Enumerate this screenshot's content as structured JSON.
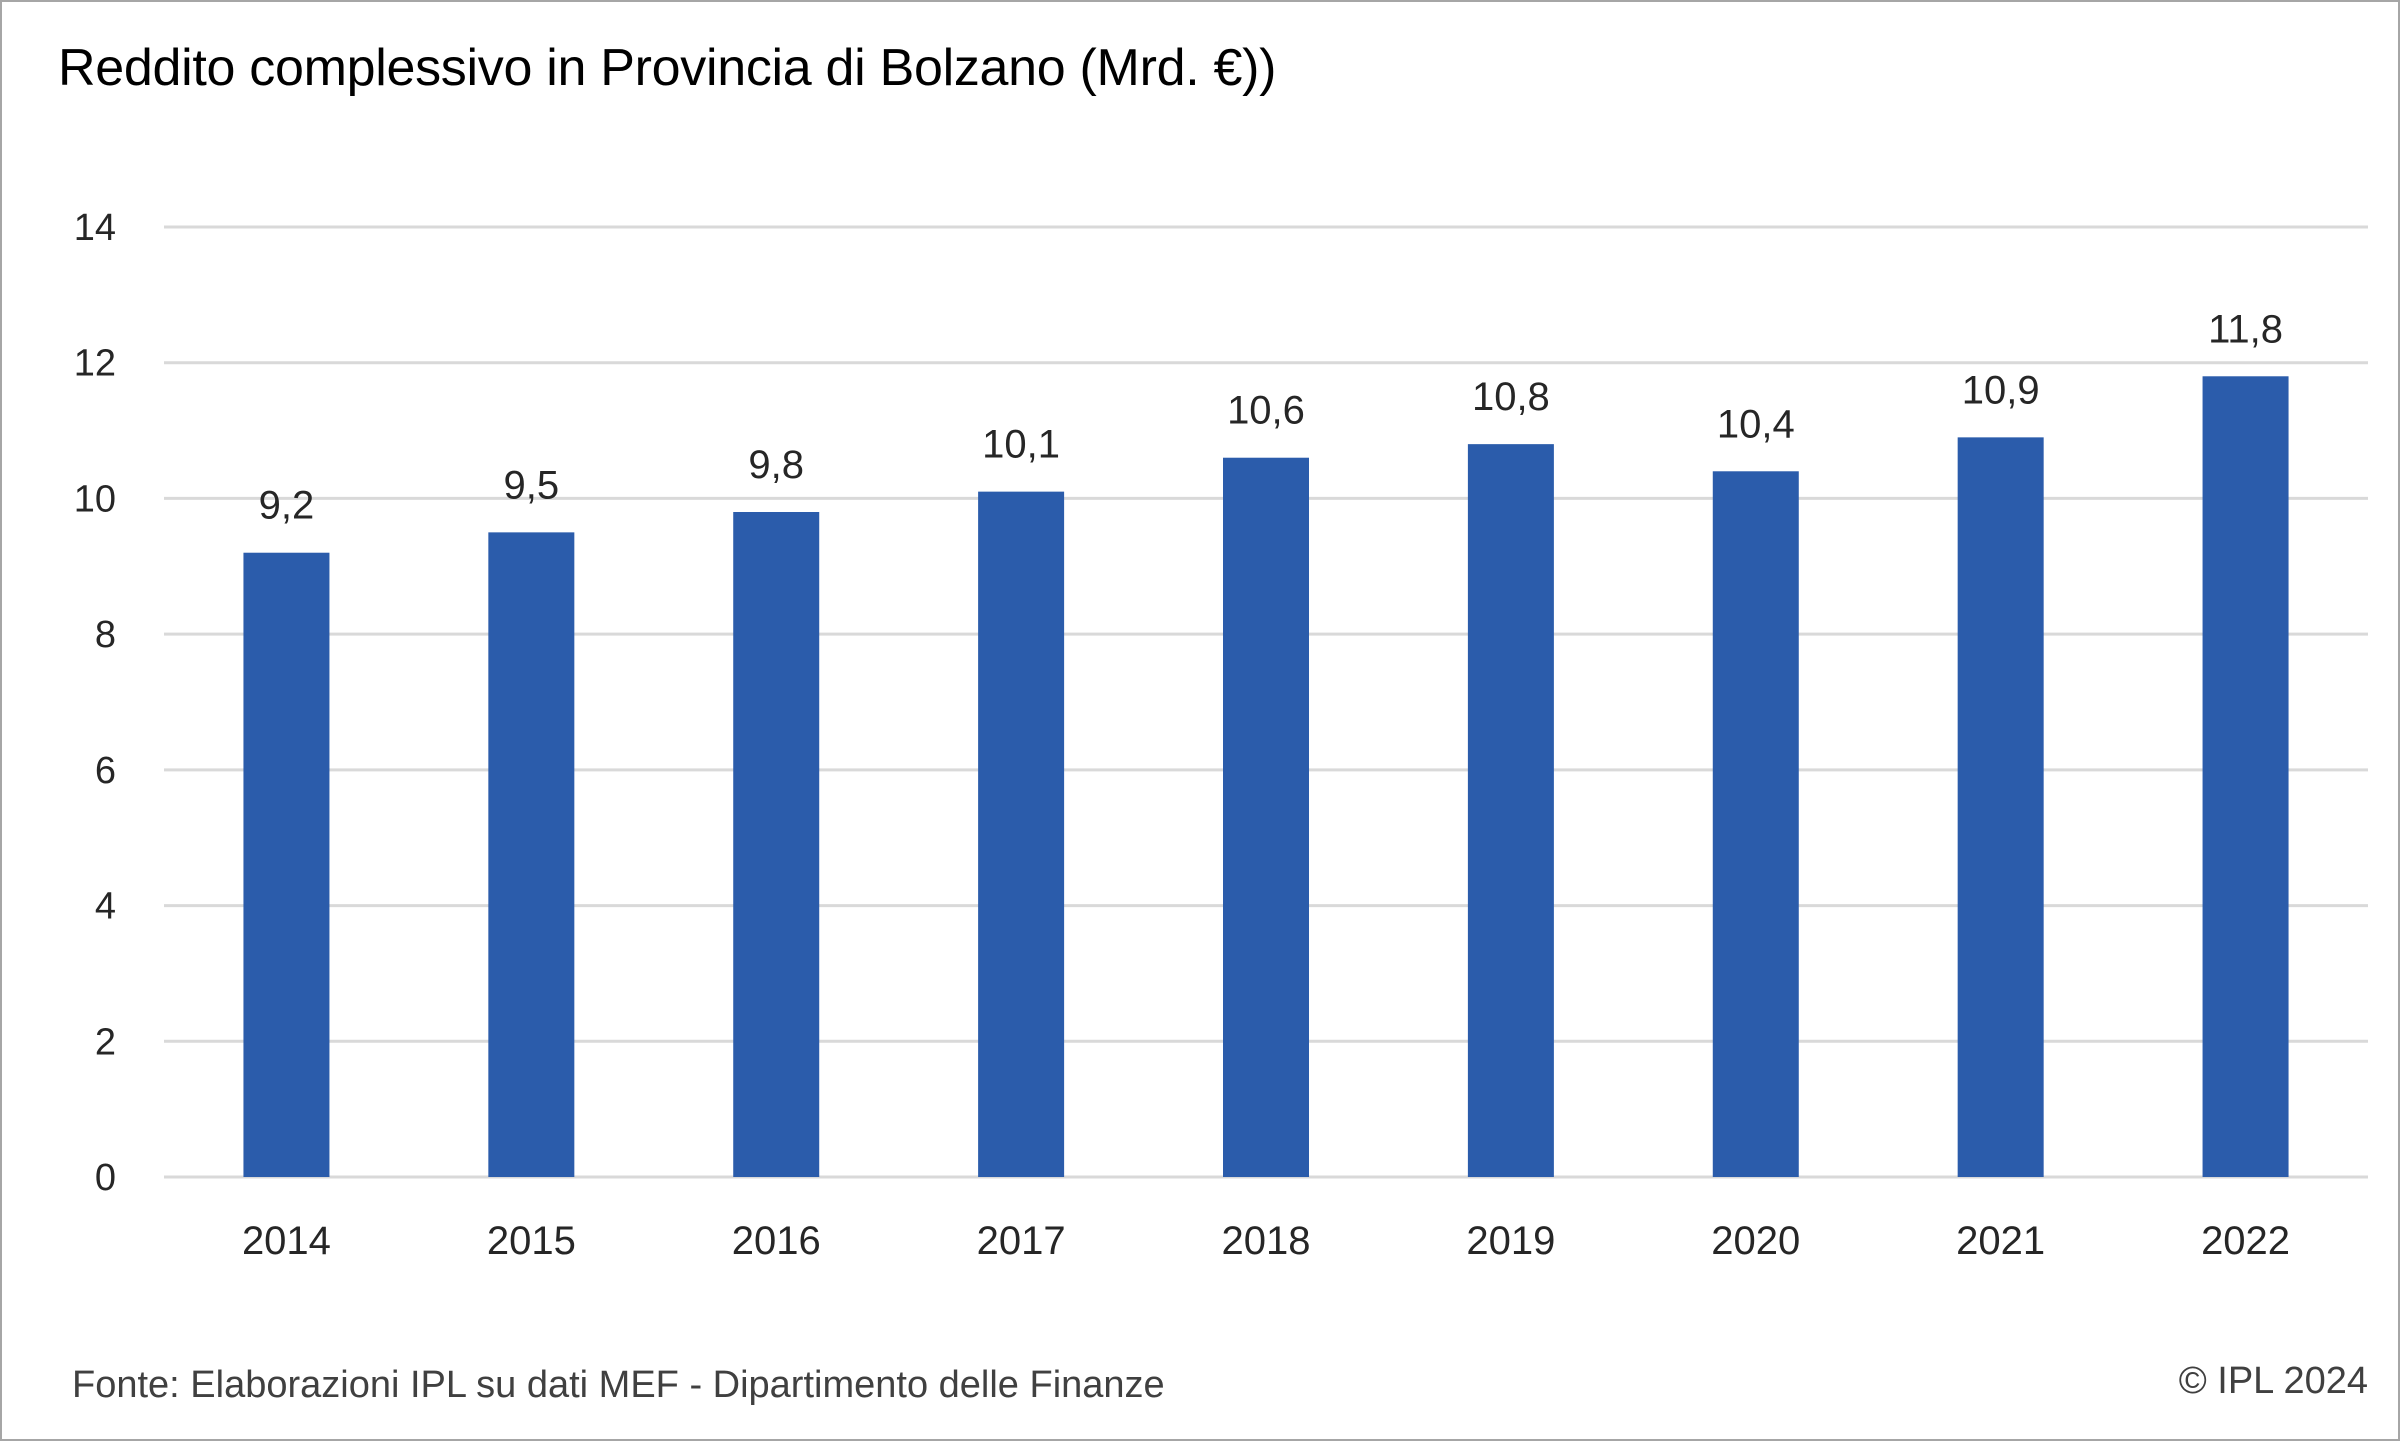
{
  "chart_data": {
    "type": "bar",
    "title": "Reddito complessivo in Provincia di Bolzano (Mrd. €))",
    "categories": [
      "2014",
      "2015",
      "2016",
      "2017",
      "2018",
      "2019",
      "2020",
      "2021",
      "2022"
    ],
    "values": [
      9.2,
      9.5,
      9.8,
      10.1,
      10.6,
      10.8,
      10.4,
      10.9,
      11.8
    ],
    "value_labels": [
      "9,2",
      "9,5",
      "9,8",
      "10,1",
      "10,6",
      "10,8",
      "10,4",
      "10,9",
      "11,8"
    ],
    "ylim": [
      0,
      14
    ],
    "yticks": [
      0,
      2,
      4,
      6,
      8,
      10,
      12,
      14
    ],
    "xlabel": "",
    "ylabel": "",
    "grid": true,
    "legend": "none",
    "bar_color": "#2b5cab",
    "grid_color": "#d9d9d9"
  },
  "footer": {
    "source": "Fonte: Elaborazioni IPL su dati MEF - Dipartimento delle Finanze",
    "copyright": "© IPL 2024"
  }
}
